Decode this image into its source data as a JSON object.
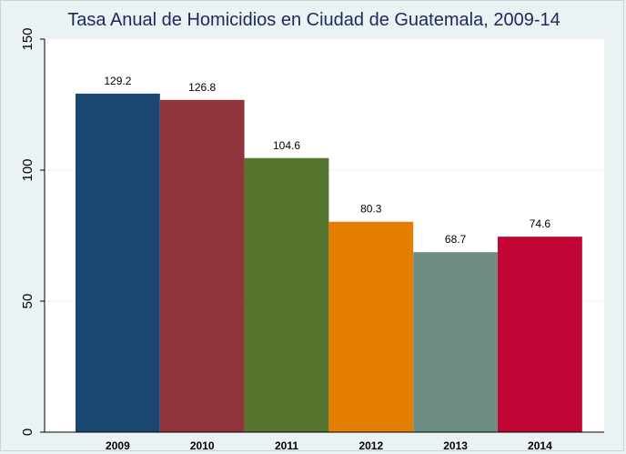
{
  "chart_data": {
    "type": "bar",
    "title": "Tasa Anual de Homicidios en Ciudad de Guatemala, 2009-14",
    "xlabel": "",
    "ylabel": "",
    "categories": [
      "2009",
      "2010",
      "2011",
      "2012",
      "2013",
      "2014"
    ],
    "values": [
      129.2,
      126.8,
      104.6,
      80.3,
      68.7,
      74.6
    ],
    "data_labels": [
      "129.2",
      "126.8",
      "104.6",
      "80.3",
      "68.7",
      "74.6"
    ],
    "colors": [
      "#1a476f",
      "#90353b",
      "#55752f",
      "#e37e00",
      "#6e8e84",
      "#c10534"
    ],
    "ylim": [
      0,
      150
    ],
    "yticks": [
      0,
      50,
      100,
      150
    ],
    "ytick_labels": [
      "0",
      "50",
      "100",
      "150"
    ],
    "grid": true,
    "legend": "none"
  }
}
